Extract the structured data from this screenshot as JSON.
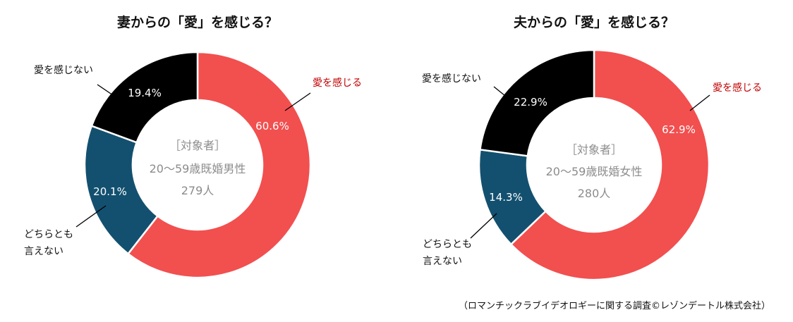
{
  "chart_data": [
    {
      "type": "pie",
      "title": "妻からの「愛」を感じる？",
      "categories": [
        "愛を感じる",
        "どちらとも言えない",
        "愛を感じない"
      ],
      "values": [
        60.6,
        20.1,
        19.4
      ],
      "value_labels": [
        "60.6%",
        "20.1%",
        "19.4%"
      ],
      "colors": [
        "#f24f4f",
        "#13506f",
        "#000000"
      ],
      "labels": {
        "love": "愛を感じる",
        "neither_line1": "どちらとも",
        "neither_line2": "言えない",
        "no_love": "愛を感じない"
      },
      "center": {
        "line1": "［対象者］",
        "line2": "20～59歳既婚男性",
        "line3": "279人"
      }
    },
    {
      "type": "pie",
      "title": "夫からの「愛」を感じる？",
      "categories": [
        "愛を感じる",
        "どちらとも言えない",
        "愛を感じない"
      ],
      "values": [
        62.9,
        14.3,
        22.9
      ],
      "value_labels": [
        "62.9%",
        "14.3%",
        "22.9%"
      ],
      "colors": [
        "#f24f4f",
        "#13506f",
        "#000000"
      ],
      "labels": {
        "love": "愛を感じる",
        "neither_line1": "どちらとも",
        "neither_line2": "言えない",
        "no_love": "愛を感じない"
      },
      "center": {
        "line1": "［対象者］",
        "line2": "20～59歳既婚女性",
        "line3": "280人"
      }
    }
  ],
  "footnote": "（ロマンチックラブイデオロギーに関する調査©レゾンデートル株式会社）"
}
